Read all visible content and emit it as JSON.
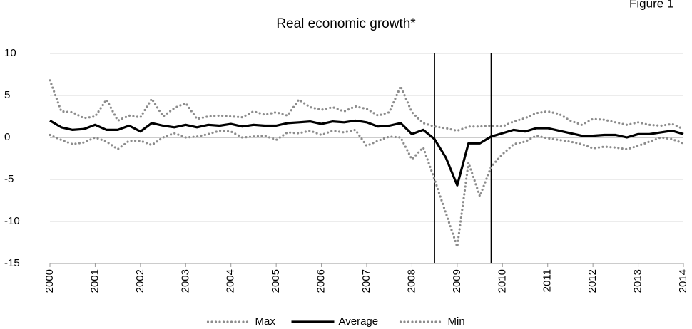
{
  "chart_data": {
    "type": "line",
    "title": "Real economic growth*",
    "figure_label": "Figure 1",
    "x": [
      2000,
      2000.25,
      2000.5,
      2000.75,
      2001,
      2001.25,
      2001.5,
      2001.75,
      2002,
      2002.25,
      2002.5,
      2002.75,
      2003,
      2003.25,
      2003.5,
      2003.75,
      2004,
      2004.25,
      2004.5,
      2004.75,
      2005,
      2005.25,
      2005.5,
      2005.75,
      2006,
      2006.25,
      2006.5,
      2006.75,
      2007,
      2007.25,
      2007.5,
      2007.75,
      2008,
      2008.25,
      2008.5,
      2008.75,
      2009,
      2009.25,
      2009.5,
      2009.75,
      2010,
      2010.25,
      2010.5,
      2010.75,
      2011,
      2011.25,
      2011.5,
      2011.75,
      2012,
      2012.25,
      2012.5,
      2012.75,
      2013,
      2013.25,
      2013.5,
      2013.75,
      2014
    ],
    "series": [
      {
        "name": "Max",
        "color": "#8c8c8c",
        "style": "dotted",
        "values": [
          6.8,
          3.1,
          3.0,
          2.3,
          2.5,
          4.5,
          2.0,
          2.6,
          2.4,
          4.6,
          2.5,
          3.5,
          4.1,
          2.2,
          2.5,
          2.6,
          2.5,
          2.4,
          3.1,
          2.7,
          3.0,
          2.6,
          4.5,
          3.6,
          3.3,
          3.6,
          3.1,
          3.7,
          3.4,
          2.6,
          3.0,
          6.1,
          3.0,
          1.7,
          1.3,
          1.1,
          0.8,
          1.3,
          1.3,
          1.4,
          1.3,
          1.9,
          2.3,
          2.9,
          3.1,
          2.8,
          2.0,
          1.5,
          2.2,
          2.1,
          1.8,
          1.5,
          1.8,
          1.5,
          1.4,
          1.6,
          1.0
        ]
      },
      {
        "name": "Average",
        "color": "#000000",
        "style": "solid",
        "values": [
          2.0,
          1.2,
          0.9,
          1.0,
          1.5,
          0.9,
          0.9,
          1.4,
          0.7,
          1.7,
          1.4,
          1.2,
          1.5,
          1.2,
          1.5,
          1.4,
          1.6,
          1.3,
          1.5,
          1.4,
          1.4,
          1.7,
          1.8,
          1.9,
          1.6,
          1.9,
          1.8,
          2.0,
          1.8,
          1.3,
          1.4,
          1.7,
          0.4,
          0.9,
          -0.2,
          -2.4,
          -5.7,
          -0.7,
          -0.7,
          0.1,
          0.5,
          0.9,
          0.7,
          1.1,
          1.1,
          0.8,
          0.5,
          0.2,
          0.2,
          0.3,
          0.3,
          0.0,
          0.4,
          0.4,
          0.6,
          0.8,
          0.4
        ]
      },
      {
        "name": "Min",
        "color": "#8c8c8c",
        "style": "dotted",
        "values": [
          0.3,
          -0.3,
          -0.8,
          -0.6,
          0.0,
          -0.5,
          -1.4,
          -0.4,
          -0.4,
          -0.9,
          0.0,
          0.5,
          0.0,
          0.1,
          0.4,
          0.8,
          0.7,
          0.0,
          0.1,
          0.2,
          -0.3,
          0.6,
          0.5,
          0.8,
          0.3,
          0.8,
          0.6,
          0.9,
          -1.0,
          -0.4,
          0.1,
          0.0,
          -2.6,
          -1.2,
          -5.0,
          -9.0,
          -13.0,
          -3.0,
          -7.0,
          -3.5,
          -2.0,
          -0.8,
          -0.5,
          0.2,
          -0.1,
          -0.3,
          -0.5,
          -0.8,
          -1.3,
          -1.1,
          -1.2,
          -1.4,
          -1.0,
          -0.5,
          0.0,
          -0.2,
          -0.7
        ]
      }
    ],
    "vlines": [
      2008.5,
      2009.75
    ],
    "xlim": [
      2000,
      2014
    ],
    "xticks": [
      2000,
      2001,
      2002,
      2003,
      2004,
      2005,
      2006,
      2007,
      2008,
      2009,
      2010,
      2011,
      2012,
      2013,
      2014
    ],
    "ylim": [
      -15,
      10
    ],
    "yticks": [
      -15,
      -10,
      -5,
      0,
      5,
      10
    ],
    "grid": true,
    "legend": "bottom"
  }
}
